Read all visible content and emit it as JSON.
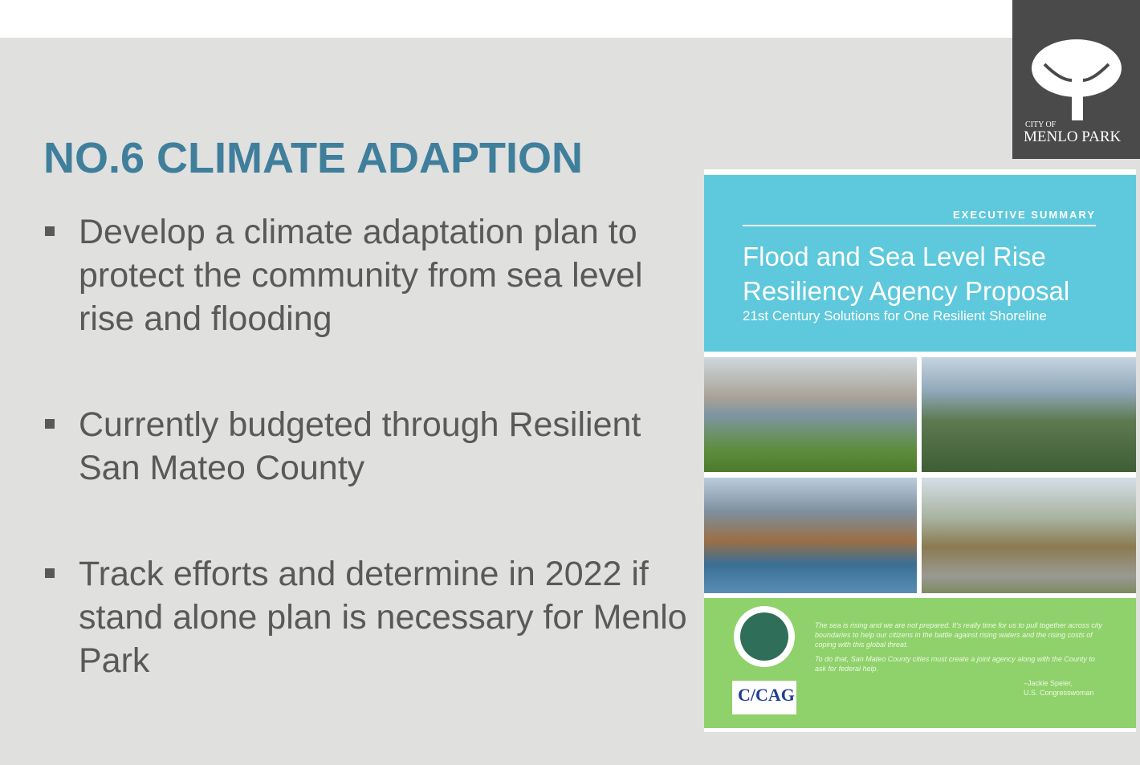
{
  "logo": {
    "line1": "CITY OF",
    "line2": "MENLO PARK"
  },
  "title": "NO.6 CLIMATE ADAPTION",
  "bullets": [
    "Develop a climate adaptation plan to protect the community from sea level rise and flooding",
    "Currently budgeted through Resilient San Mateo County",
    "Track efforts and determine in 2022 if stand alone plan is necessary for Menlo Park"
  ],
  "cover": {
    "label": "EXECUTIVE SUMMARY",
    "title_lines": [
      "Flood and Sea Level Rise",
      "Resiliency Agency Proposal"
    ],
    "subtitle": "21st Century Solutions for One Resilient Shoreline",
    "quote": [
      "The sea is rising and we are not prepared. It's really time for us to pull together across city boundaries to help our citizens in the battle against rising waters and the rising costs of coping with this global threat.",
      "To do that, San Mateo County cities must create a joint agency along with the County to ask for federal help."
    ],
    "attribution": [
      "–Jackie Speier,",
      "U.S. Congresswoman"
    ],
    "badge": "C/CAG"
  }
}
